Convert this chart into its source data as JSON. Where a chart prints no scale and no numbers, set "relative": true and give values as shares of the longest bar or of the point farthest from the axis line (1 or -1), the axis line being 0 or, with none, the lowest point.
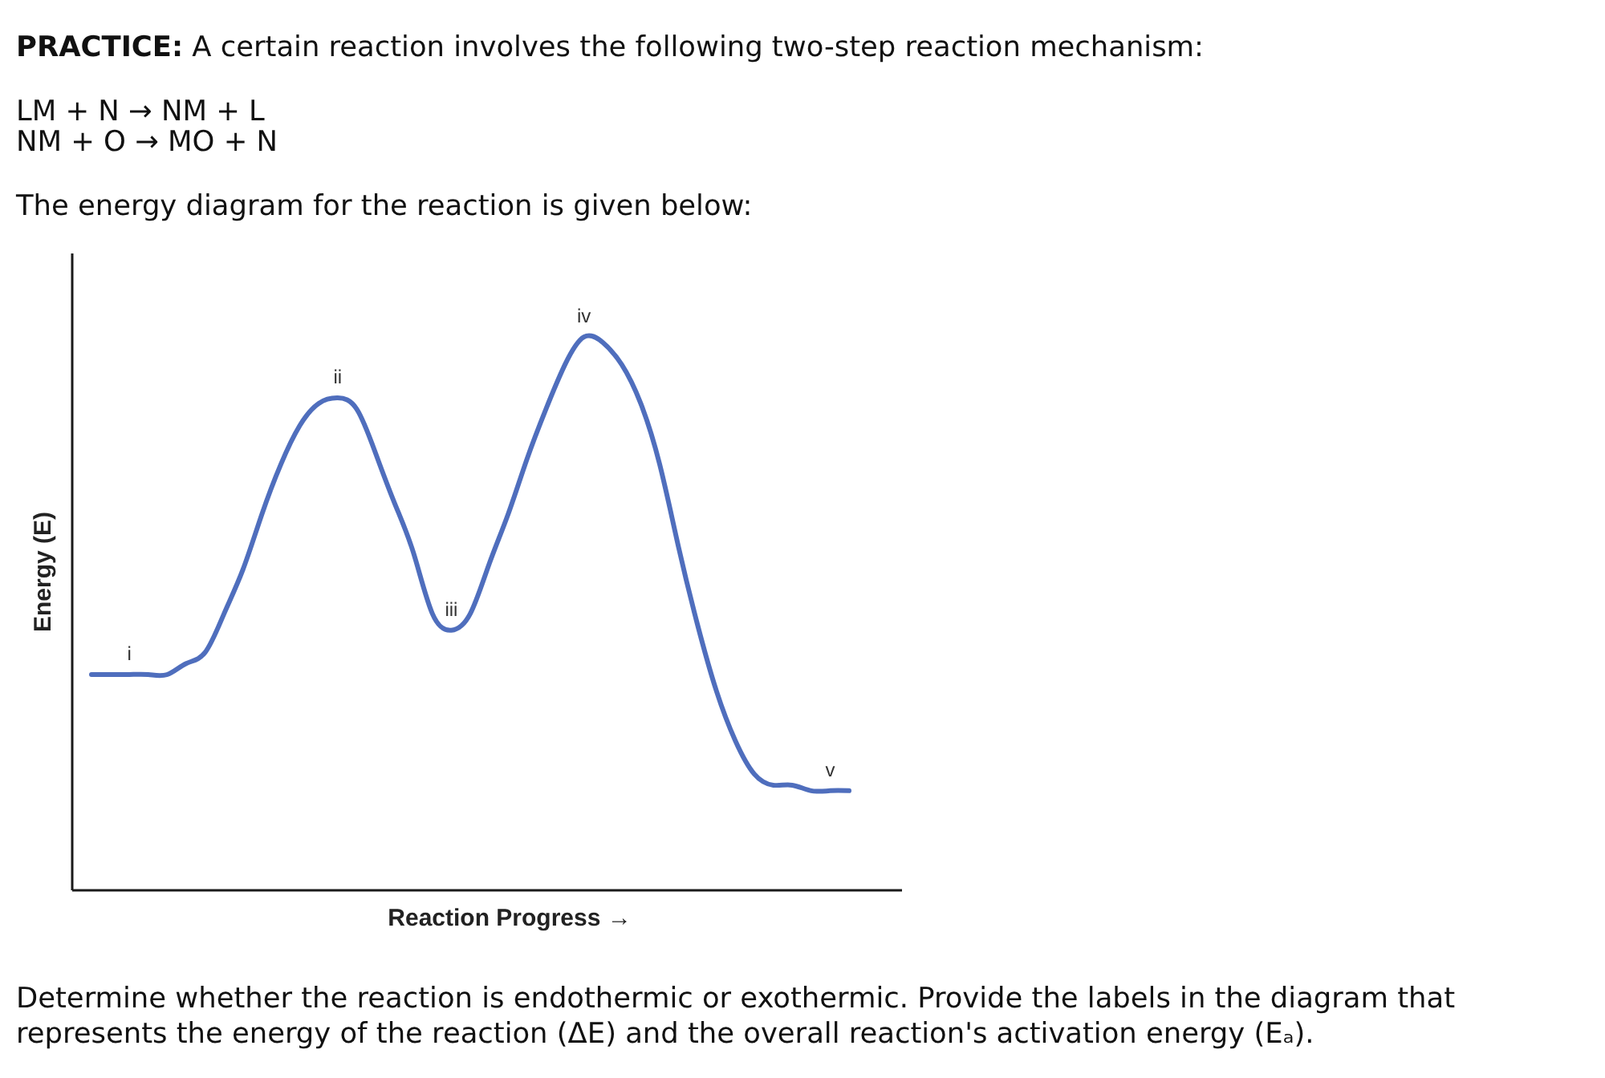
{
  "chart_data": {
    "type": "line",
    "title": "PRACTICE:",
    "subtitle": "A certain reaction involves the following two-step reaction mechanism:",
    "xlabel": "Reaction Progress →",
    "ylabel": "Energy (E)",
    "relative": true,
    "categories": [
      null,
      null,
      null,
      null,
      null,
      null,
      null,
      null,
      null,
      null,
      null,
      null,
      null,
      null,
      null,
      null,
      null,
      null,
      null,
      null,
      null,
      null,
      null,
      null,
      null,
      null,
      null,
      null,
      null,
      null,
      null,
      null,
      null,
      null,
      null,
      null,
      null,
      null,
      null,
      null,
      null
    ],
    "values": [
      0.39,
      0.39,
      0.39,
      0.39,
      0.39,
      0.41,
      0.43,
      0.5,
      0.58,
      0.68,
      0.77,
      0.84,
      0.88,
      0.89,
      0.87,
      0.79,
      0.7,
      0.61,
      0.5,
      0.47,
      0.5,
      0.59,
      0.68,
      0.78,
      0.87,
      0.95,
      1.0,
      0.99,
      0.95,
      0.88,
      0.77,
      0.62,
      0.48,
      0.36,
      0.27,
      0.21,
      0.19,
      0.19,
      0.18,
      0.18,
      0.18
    ],
    "color": "#4f6ebd",
    "annotations": [
      "LM + N → NM + L",
      "NM + O → MO + N",
      "The energy diagram for the reaction is given below:",
      {
        "text": "i",
        "y": 0.39
      },
      {
        "text": "ii",
        "y": 0.89
      },
      {
        "text": "iii",
        "y": 0.47
      },
      {
        "text": "iv",
        "y": 1.0
      },
      {
        "text": "v",
        "y": 0.18
      },
      "Determine whether the reaction is endothermic or exothermic. Provide the labels in the diagram that represents the energy of the reaction (ΔE) and the overall reaction's activation energy (Eₐ)."
    ]
  }
}
